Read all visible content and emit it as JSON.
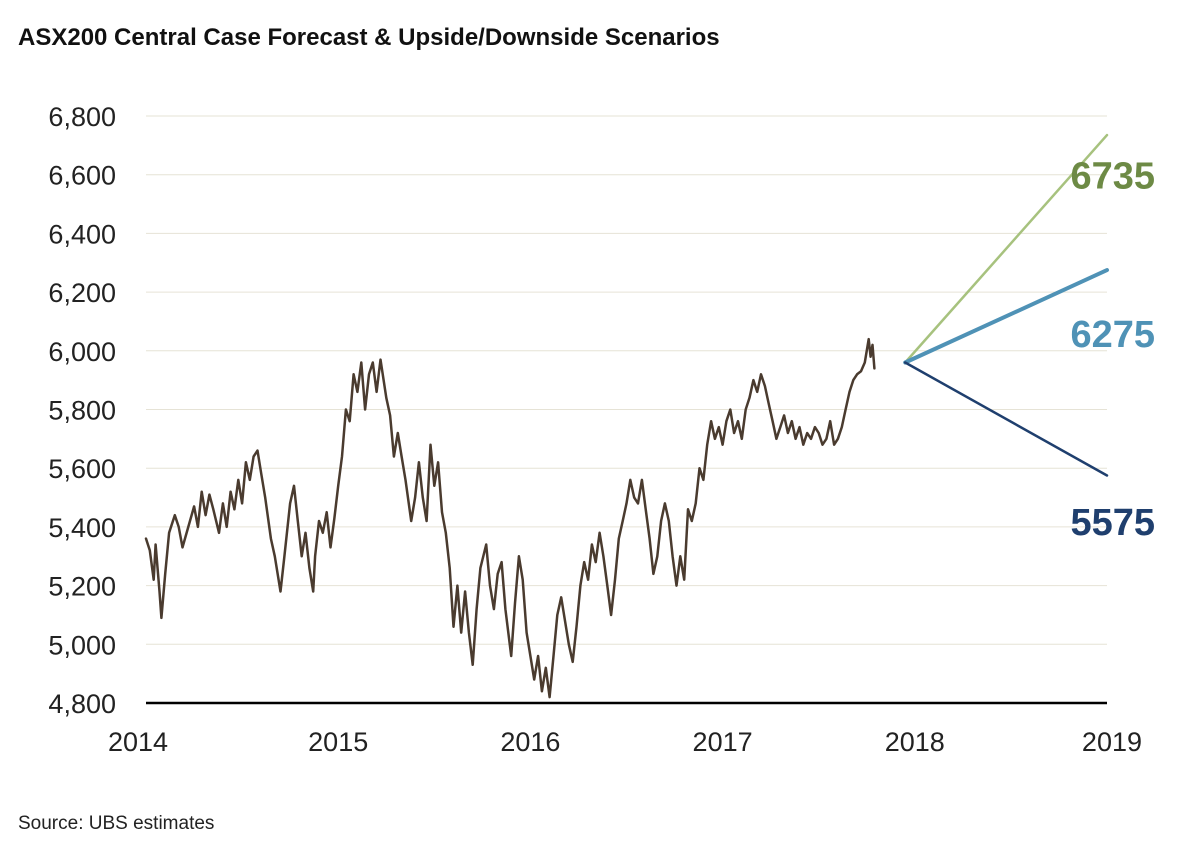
{
  "chart_data": {
    "type": "line",
    "title": "ASX200 Central Case Forecast & Upside/Downside Scenarios",
    "source": "Source: UBS estimates",
    "xlabel": "",
    "ylabel": "",
    "xlim": [
      2014,
      2019
    ],
    "ylim": [
      4800,
      6800
    ],
    "x_ticks": [
      "2014",
      "2015",
      "2016",
      "2017",
      "2018",
      "2019"
    ],
    "y_ticks": [
      "4,800",
      "5,000",
      "5,200",
      "5,400",
      "5,600",
      "5,800",
      "6,000",
      "6,200",
      "6,400",
      "6,600",
      "6,800"
    ],
    "y_tick_values": [
      4800,
      5000,
      5200,
      5400,
      5600,
      5800,
      6000,
      6200,
      6400,
      6600,
      6800
    ],
    "grid": true,
    "series": [
      {
        "name": "ASX200",
        "color": "#4a3b2f",
        "points": [
          [
            2014.0,
            5360
          ],
          [
            2014.02,
            5320
          ],
          [
            2014.04,
            5220
          ],
          [
            2014.05,
            5340
          ],
          [
            2014.07,
            5180
          ],
          [
            2014.08,
            5090
          ],
          [
            2014.1,
            5240
          ],
          [
            2014.12,
            5380
          ],
          [
            2014.15,
            5440
          ],
          [
            2014.17,
            5400
          ],
          [
            2014.19,
            5330
          ],
          [
            2014.22,
            5400
          ],
          [
            2014.25,
            5470
          ],
          [
            2014.27,
            5400
          ],
          [
            2014.29,
            5520
          ],
          [
            2014.31,
            5440
          ],
          [
            2014.33,
            5510
          ],
          [
            2014.35,
            5460
          ],
          [
            2014.38,
            5380
          ],
          [
            2014.4,
            5480
          ],
          [
            2014.42,
            5400
          ],
          [
            2014.44,
            5520
          ],
          [
            2014.46,
            5460
          ],
          [
            2014.48,
            5560
          ],
          [
            2014.5,
            5480
          ],
          [
            2014.52,
            5620
          ],
          [
            2014.54,
            5560
          ],
          [
            2014.56,
            5640
          ],
          [
            2014.58,
            5660
          ],
          [
            2014.6,
            5580
          ],
          [
            2014.62,
            5500
          ],
          [
            2014.65,
            5360
          ],
          [
            2014.67,
            5300
          ],
          [
            2014.7,
            5180
          ],
          [
            2014.72,
            5300
          ],
          [
            2014.75,
            5480
          ],
          [
            2014.77,
            5540
          ],
          [
            2014.79,
            5420
          ],
          [
            2014.81,
            5300
          ],
          [
            2014.83,
            5380
          ],
          [
            2014.85,
            5260
          ],
          [
            2014.87,
            5180
          ],
          [
            2014.88,
            5300
          ],
          [
            2014.9,
            5420
          ],
          [
            2014.92,
            5380
          ],
          [
            2014.94,
            5450
          ],
          [
            2014.96,
            5330
          ],
          [
            2014.98,
            5430
          ],
          [
            2015.0,
            5540
          ],
          [
            2015.02,
            5640
          ],
          [
            2015.04,
            5800
          ],
          [
            2015.06,
            5760
          ],
          [
            2015.08,
            5920
          ],
          [
            2015.1,
            5860
          ],
          [
            2015.12,
            5960
          ],
          [
            2015.14,
            5800
          ],
          [
            2015.16,
            5920
          ],
          [
            2015.18,
            5960
          ],
          [
            2015.2,
            5860
          ],
          [
            2015.22,
            5970
          ],
          [
            2015.25,
            5840
          ],
          [
            2015.27,
            5780
          ],
          [
            2015.29,
            5640
          ],
          [
            2015.31,
            5720
          ],
          [
            2015.33,
            5640
          ],
          [
            2015.35,
            5560
          ],
          [
            2015.38,
            5420
          ],
          [
            2015.4,
            5500
          ],
          [
            2015.42,
            5620
          ],
          [
            2015.44,
            5500
          ],
          [
            2015.46,
            5420
          ],
          [
            2015.48,
            5680
          ],
          [
            2015.5,
            5540
          ],
          [
            2015.52,
            5620
          ],
          [
            2015.54,
            5450
          ],
          [
            2015.56,
            5380
          ],
          [
            2015.58,
            5260
          ],
          [
            2015.6,
            5060
          ],
          [
            2015.62,
            5200
          ],
          [
            2015.64,
            5040
          ],
          [
            2015.66,
            5180
          ],
          [
            2015.68,
            5040
          ],
          [
            2015.7,
            4930
          ],
          [
            2015.72,
            5120
          ],
          [
            2015.74,
            5260
          ],
          [
            2015.77,
            5340
          ],
          [
            2015.79,
            5200
          ],
          [
            2015.81,
            5120
          ],
          [
            2015.83,
            5240
          ],
          [
            2015.85,
            5280
          ],
          [
            2015.87,
            5120
          ],
          [
            2015.9,
            4960
          ],
          [
            2015.92,
            5140
          ],
          [
            2015.94,
            5300
          ],
          [
            2015.96,
            5220
          ],
          [
            2015.98,
            5040
          ],
          [
            2016.0,
            4960
          ],
          [
            2016.02,
            4880
          ],
          [
            2016.04,
            4960
          ],
          [
            2016.06,
            4840
          ],
          [
            2016.08,
            4920
          ],
          [
            2016.1,
            4820
          ],
          [
            2016.12,
            4960
          ],
          [
            2016.14,
            5100
          ],
          [
            2016.16,
            5160
          ],
          [
            2016.18,
            5080
          ],
          [
            2016.2,
            5000
          ],
          [
            2016.22,
            4940
          ],
          [
            2016.24,
            5060
          ],
          [
            2016.26,
            5200
          ],
          [
            2016.28,
            5280
          ],
          [
            2016.3,
            5220
          ],
          [
            2016.32,
            5340
          ],
          [
            2016.34,
            5280
          ],
          [
            2016.36,
            5380
          ],
          [
            2016.38,
            5300
          ],
          [
            2016.4,
            5200
          ],
          [
            2016.42,
            5100
          ],
          [
            2016.44,
            5220
          ],
          [
            2016.46,
            5360
          ],
          [
            2016.48,
            5420
          ],
          [
            2016.5,
            5480
          ],
          [
            2016.52,
            5560
          ],
          [
            2016.54,
            5500
          ],
          [
            2016.56,
            5480
          ],
          [
            2016.58,
            5560
          ],
          [
            2016.6,
            5460
          ],
          [
            2016.62,
            5360
          ],
          [
            2016.64,
            5240
          ],
          [
            2016.66,
            5300
          ],
          [
            2016.68,
            5420
          ],
          [
            2016.7,
            5480
          ],
          [
            2016.72,
            5420
          ],
          [
            2016.74,
            5300
          ],
          [
            2016.76,
            5200
          ],
          [
            2016.78,
            5300
          ],
          [
            2016.8,
            5220
          ],
          [
            2016.82,
            5460
          ],
          [
            2016.84,
            5420
          ],
          [
            2016.86,
            5480
          ],
          [
            2016.88,
            5600
          ],
          [
            2016.9,
            5560
          ],
          [
            2016.92,
            5680
          ],
          [
            2016.94,
            5760
          ],
          [
            2016.96,
            5700
          ],
          [
            2016.98,
            5740
          ],
          [
            2017.0,
            5680
          ],
          [
            2017.02,
            5760
          ],
          [
            2017.04,
            5800
          ],
          [
            2017.06,
            5720
          ],
          [
            2017.08,
            5760
          ],
          [
            2017.1,
            5700
          ],
          [
            2017.12,
            5800
          ],
          [
            2017.14,
            5840
          ],
          [
            2017.16,
            5900
          ],
          [
            2017.18,
            5860
          ],
          [
            2017.2,
            5920
          ],
          [
            2017.22,
            5880
          ],
          [
            2017.24,
            5820
          ],
          [
            2017.26,
            5760
          ],
          [
            2017.28,
            5700
          ],
          [
            2017.3,
            5740
          ],
          [
            2017.32,
            5780
          ],
          [
            2017.34,
            5720
          ],
          [
            2017.36,
            5760
          ],
          [
            2017.38,
            5700
          ],
          [
            2017.4,
            5740
          ],
          [
            2017.42,
            5680
          ],
          [
            2017.44,
            5720
          ],
          [
            2017.46,
            5700
          ],
          [
            2017.48,
            5740
          ],
          [
            2017.5,
            5720
          ],
          [
            2017.52,
            5680
          ],
          [
            2017.54,
            5700
          ],
          [
            2017.56,
            5760
          ],
          [
            2017.58,
            5680
          ],
          [
            2017.6,
            5700
          ],
          [
            2017.62,
            5740
          ],
          [
            2017.64,
            5800
          ],
          [
            2017.66,
            5860
          ],
          [
            2017.68,
            5900
          ],
          [
            2017.7,
            5920
          ],
          [
            2017.72,
            5930
          ],
          [
            2017.74,
            5960
          ],
          [
            2017.76,
            6040
          ],
          [
            2017.77,
            5980
          ],
          [
            2017.78,
            6020
          ],
          [
            2017.79,
            5940
          ]
        ]
      },
      {
        "name": "Upside scenario",
        "label": "6735",
        "color": "#a7c27e",
        "label_color": "#6d8a45",
        "points": [
          [
            2017.95,
            5960
          ],
          [
            2019.0,
            6735
          ]
        ]
      },
      {
        "name": "Central case",
        "label": "6275",
        "color": "#4f92b6",
        "label_color": "#4f92b6",
        "points": [
          [
            2017.95,
            5960
          ],
          [
            2019.0,
            6275
          ]
        ]
      },
      {
        "name": "Downside scenario",
        "label": "5575",
        "color": "#1f3f6e",
        "label_color": "#1f3f6e",
        "points": [
          [
            2017.95,
            5960
          ],
          [
            2019.0,
            5575
          ]
        ]
      }
    ]
  }
}
